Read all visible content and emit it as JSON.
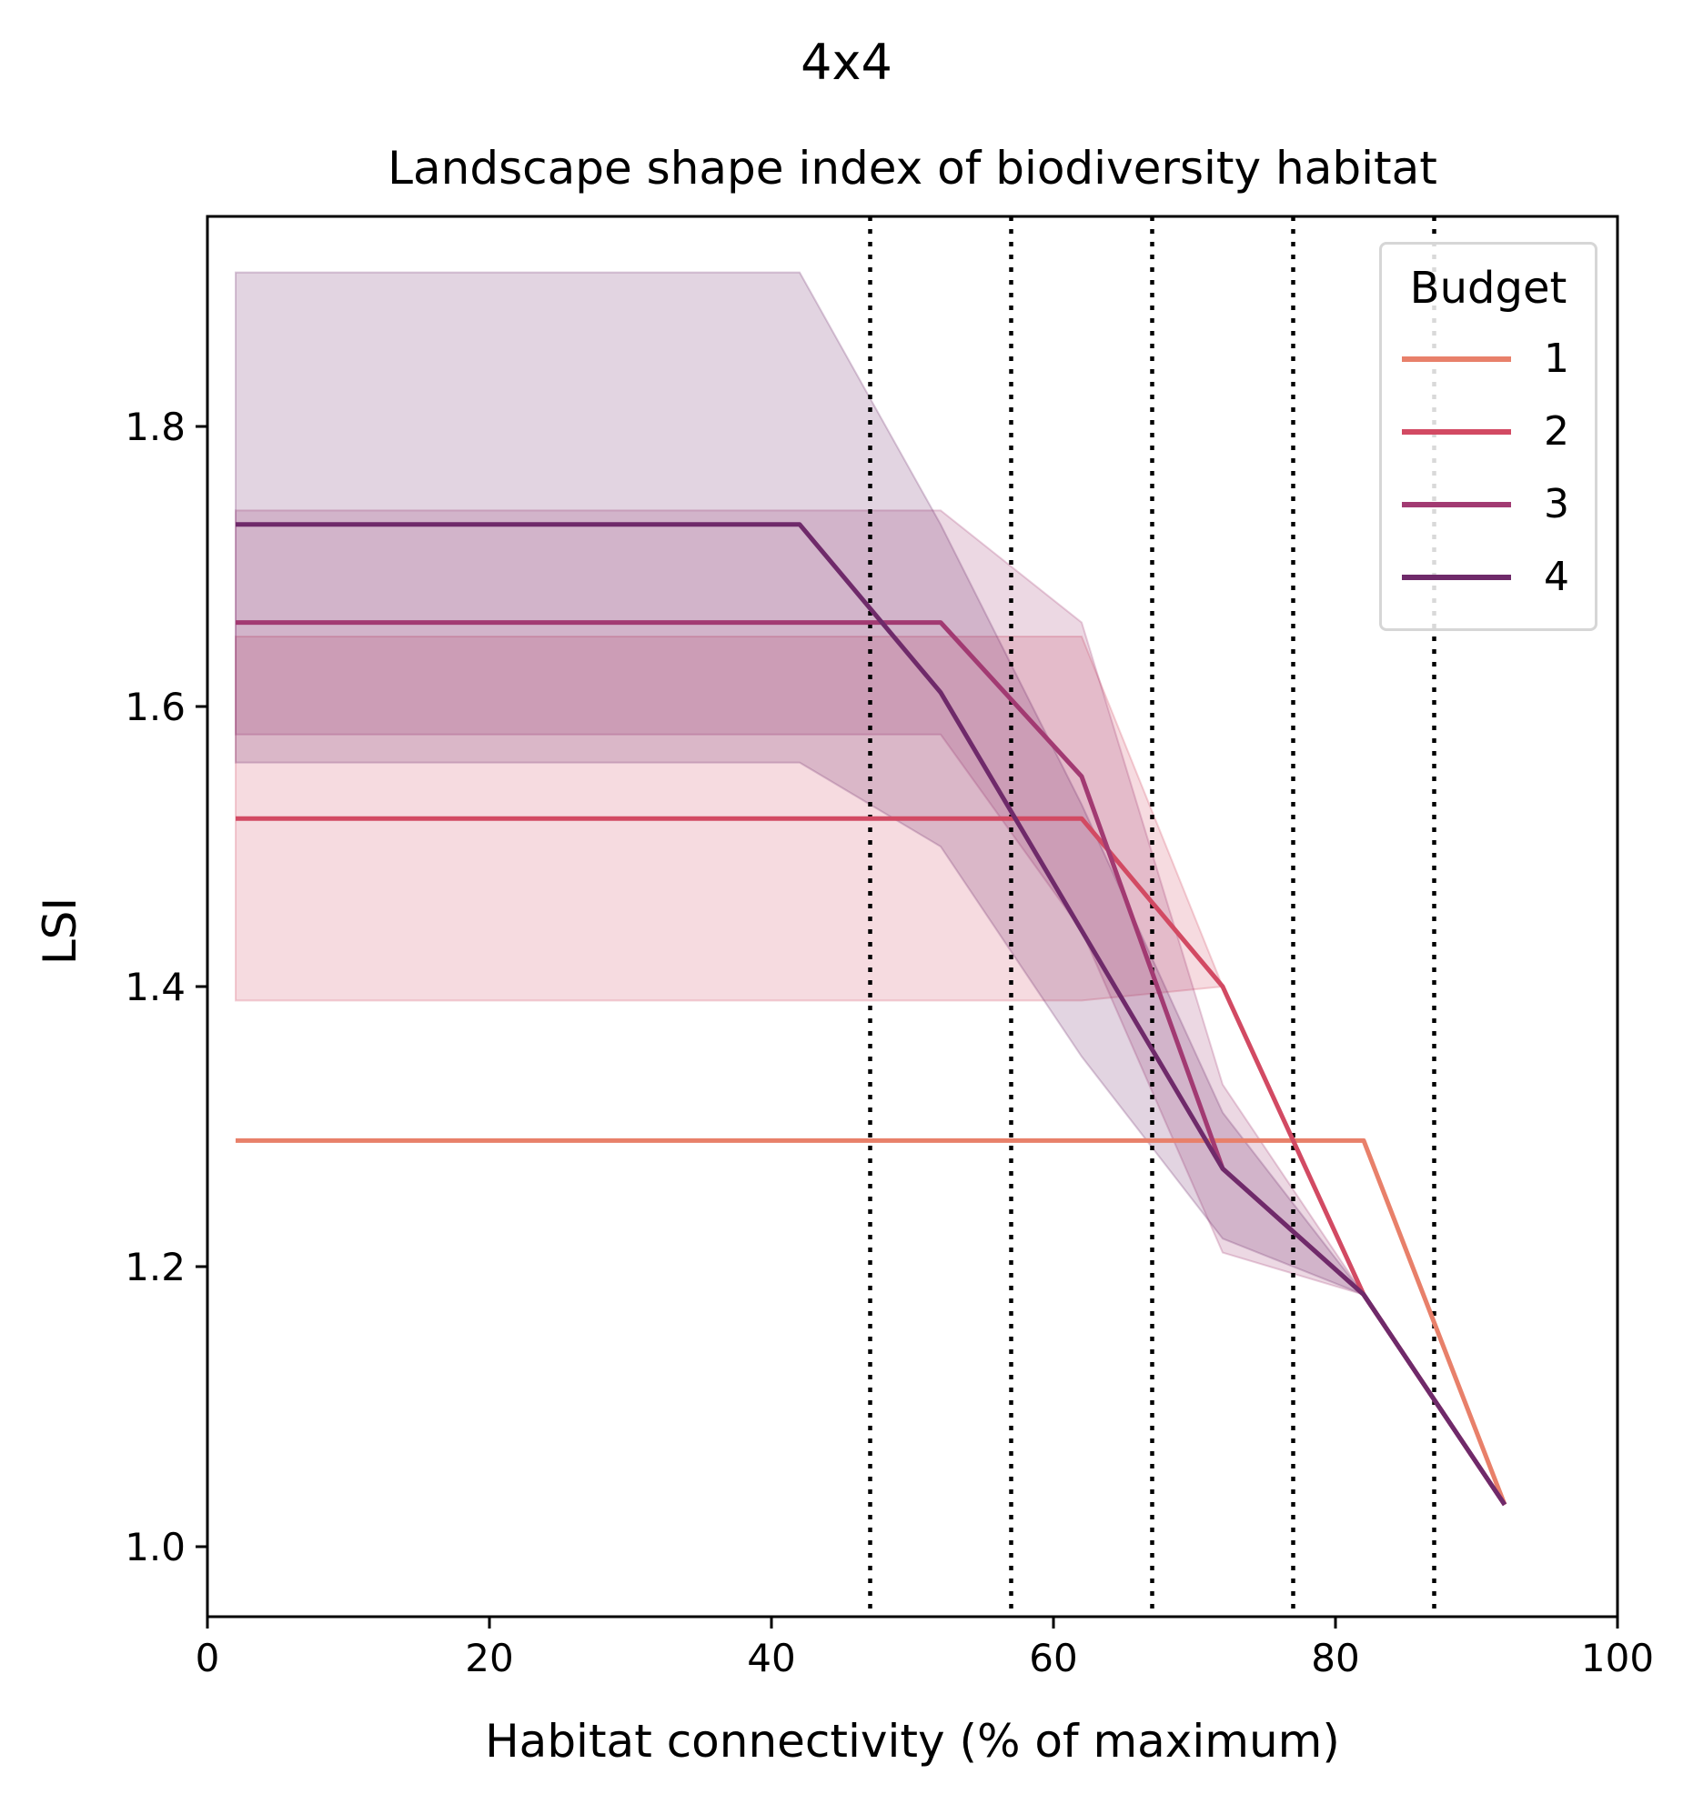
{
  "suptitle": "4x4",
  "chart_data": {
    "type": "line",
    "title": "Landscape shape index of biodiversity habitat",
    "xlabel": "Habitat connectivity (% of maximum)",
    "ylabel": "LSI",
    "xlim": [
      0,
      100
    ],
    "ylim": [
      0.95,
      1.95
    ],
    "xticks": [
      0,
      20,
      40,
      60,
      80,
      100
    ],
    "xtick_labels": [
      "0",
      "20",
      "40",
      "60",
      "80",
      "100"
    ],
    "yticks": [
      1.0,
      1.2,
      1.4,
      1.6,
      1.8
    ],
    "ytick_labels": [
      "1.0",
      "1.2",
      "1.4",
      "1.6",
      "1.8"
    ],
    "grid": false,
    "vlines": [
      47,
      57,
      67,
      77,
      87
    ],
    "legend": {
      "title": "Budget",
      "placement": "upper right"
    },
    "series": [
      {
        "name": "1",
        "color": "#e8806a",
        "x": [
          2,
          12,
          22,
          32,
          42,
          52,
          62,
          72,
          82,
          92
        ],
        "y": [
          1.29,
          1.29,
          1.29,
          1.29,
          1.29,
          1.29,
          1.29,
          1.29,
          1.29,
          1.03
        ],
        "lower": null,
        "upper": null
      },
      {
        "name": "2",
        "color": "#d24a63",
        "x": [
          2,
          12,
          22,
          32,
          42,
          52,
          62,
          72,
          82,
          92
        ],
        "y": [
          1.52,
          1.52,
          1.52,
          1.52,
          1.52,
          1.52,
          1.52,
          1.4,
          1.18,
          1.03
        ],
        "lower": [
          1.39,
          1.39,
          1.39,
          1.39,
          1.39,
          1.39,
          1.39,
          1.4,
          1.18,
          1.03
        ],
        "upper": [
          1.65,
          1.65,
          1.65,
          1.65,
          1.65,
          1.65,
          1.65,
          1.4,
          1.18,
          1.03
        ]
      },
      {
        "name": "3",
        "color": "#a23a72",
        "x": [
          2,
          12,
          22,
          32,
          42,
          52,
          62,
          72,
          82,
          92
        ],
        "y": [
          1.66,
          1.66,
          1.66,
          1.66,
          1.66,
          1.66,
          1.55,
          1.27,
          1.18,
          1.03
        ],
        "lower": [
          1.58,
          1.58,
          1.58,
          1.58,
          1.58,
          1.58,
          1.44,
          1.21,
          1.18,
          1.03
        ],
        "upper": [
          1.74,
          1.74,
          1.74,
          1.74,
          1.74,
          1.74,
          1.66,
          1.33,
          1.18,
          1.03
        ]
      },
      {
        "name": "4",
        "color": "#6f2a6a",
        "x": [
          2,
          12,
          22,
          32,
          42,
          52,
          62,
          72,
          82,
          92
        ],
        "y": [
          1.73,
          1.73,
          1.73,
          1.73,
          1.73,
          1.61,
          1.44,
          1.27,
          1.18,
          1.03
        ],
        "lower": [
          1.56,
          1.56,
          1.56,
          1.56,
          1.56,
          1.5,
          1.35,
          1.22,
          1.18,
          1.03
        ],
        "upper": [
          1.91,
          1.91,
          1.91,
          1.91,
          1.91,
          1.73,
          1.53,
          1.31,
          1.18,
          1.03
        ]
      }
    ]
  }
}
